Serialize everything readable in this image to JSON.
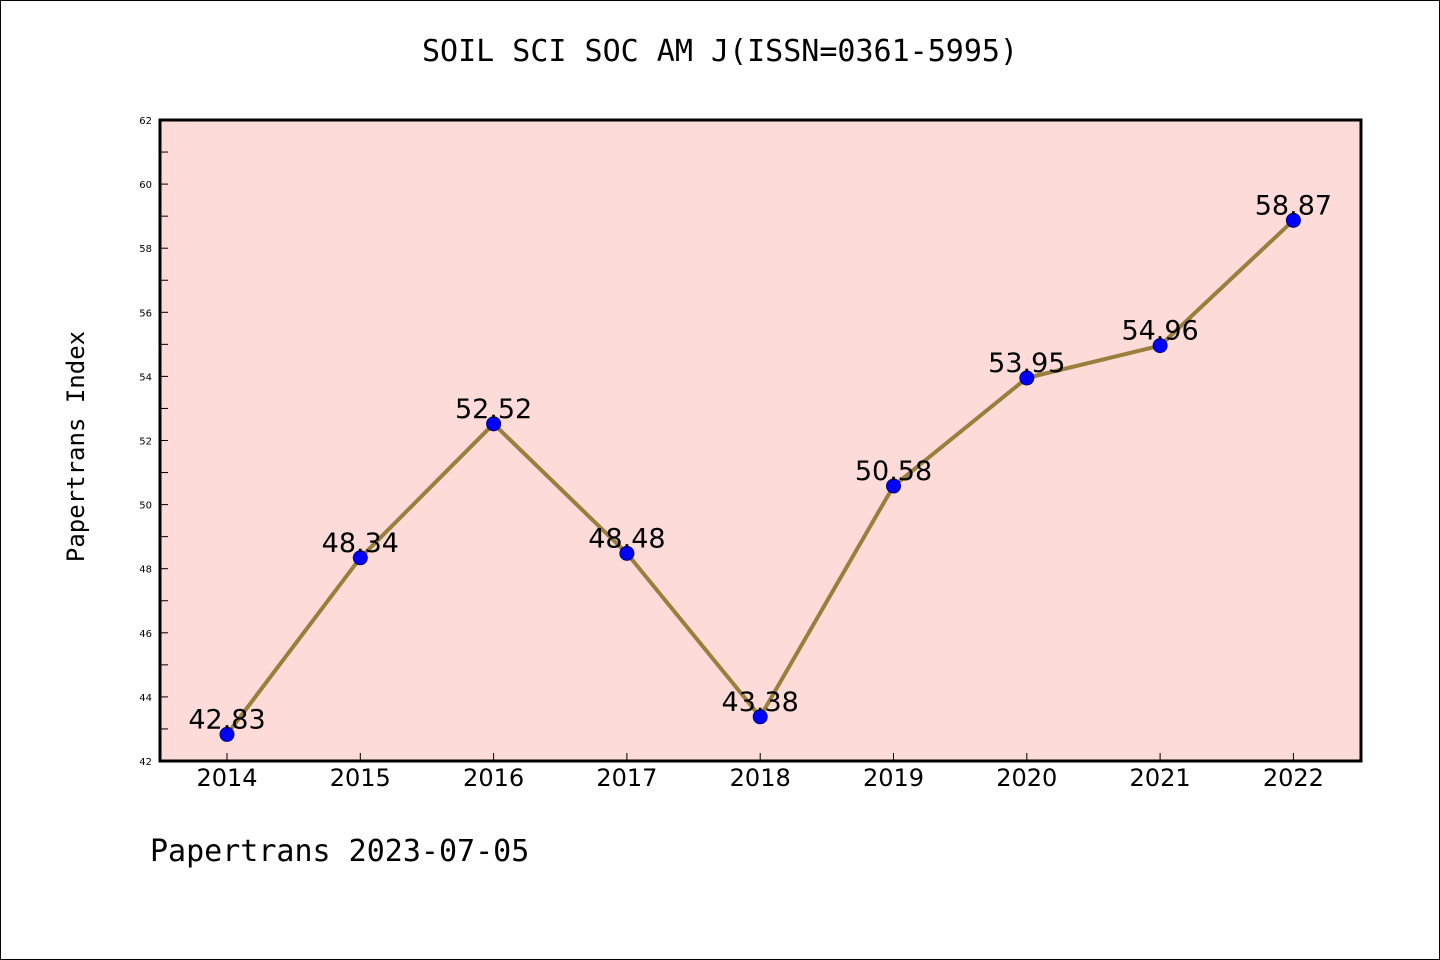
{
  "title": "SOIL SCI SOC AM J(ISSN=0361-5995)",
  "footer": "Papertrans 2023-07-05",
  "colors": {
    "plot_background": "#fddbd8",
    "line": "#9a7f3c",
    "marker": "#0000ff"
  },
  "chart_data": {
    "type": "line",
    "title": "SOIL SCI SOC AM J(ISSN=0361-5995)",
    "xlabel": "",
    "ylabel": "Papertrans Index",
    "categories": [
      "2014",
      "2015",
      "2016",
      "2017",
      "2018",
      "2019",
      "2020",
      "2021",
      "2022"
    ],
    "series": [
      {
        "values": [
          42.83,
          48.34,
          52.52,
          48.48,
          43.38,
          50.58,
          53.95,
          54.96,
          58.87
        ],
        "labels": [
          "42.83",
          "48.34",
          "52.52",
          "48.48",
          "43.38",
          "50.58",
          "53.95",
          "54.96",
          "58.87"
        ]
      }
    ],
    "ylim": [
      42,
      62
    ],
    "yticks": [
      "42",
      "44",
      "46",
      "48",
      "50",
      "52",
      "54",
      "56",
      "58",
      "60",
      "62"
    ],
    "grid": false,
    "legend": "none"
  }
}
